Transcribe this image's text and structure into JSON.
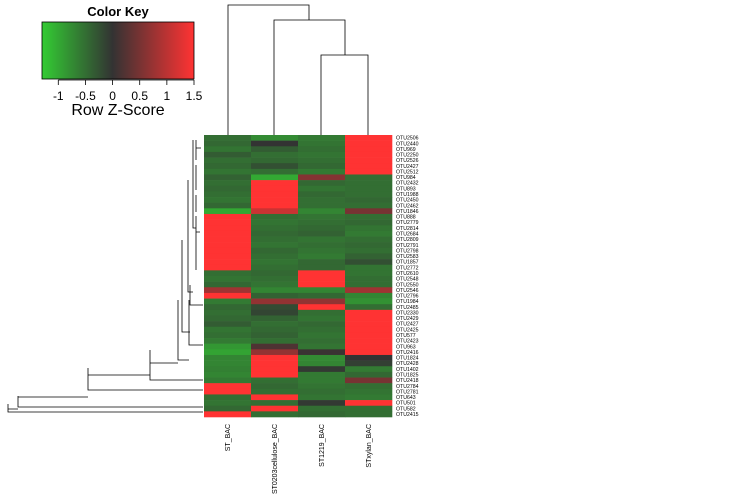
{
  "chart_data": {
    "type": "heatmap",
    "color_key": {
      "title": "Color Key",
      "xlabel": "Row Z-Score",
      "ticks": [
        "-1",
        "-0.5",
        "0",
        "0.5",
        "1",
        "1.5"
      ],
      "range": [
        -1.3,
        1.5
      ],
      "colors": [
        "#33cc33",
        "#333333",
        "#ff3333"
      ]
    },
    "columns": [
      "ST_BAC",
      "ST0203cellulose_BAC",
      "ST1219_BAC",
      "STxylan_BAC"
    ],
    "rows": [
      {
        "label": "OTU2506",
        "values": [
          -0.5,
          -0.75,
          -0.6,
          1.5
        ]
      },
      {
        "label": "OTU2440",
        "values": [
          -0.45,
          0.0,
          -0.55,
          1.5
        ]
      },
      {
        "label": "OTU969",
        "values": [
          -0.55,
          -0.35,
          -0.5,
          1.5
        ]
      },
      {
        "label": "OTU2250",
        "values": [
          -0.35,
          -0.5,
          -0.55,
          1.5
        ]
      },
      {
        "label": "OTU2526",
        "values": [
          -0.5,
          -0.45,
          -0.5,
          1.5
        ]
      },
      {
        "label": "OTU2427",
        "values": [
          -0.45,
          -0.25,
          -0.45,
          1.5
        ]
      },
      {
        "label": "OTU2512",
        "values": [
          -0.55,
          -0.5,
          -0.6,
          1.5
        ]
      },
      {
        "label": "OTU984",
        "values": [
          -0.4,
          -1.0,
          0.6,
          -0.5
        ]
      },
      {
        "label": "OTU2432",
        "values": [
          -0.5,
          1.5,
          -0.45,
          -0.5
        ]
      },
      {
        "label": "OTU893",
        "values": [
          -0.45,
          1.5,
          -0.55,
          -0.5
        ]
      },
      {
        "label": "OTU1988",
        "values": [
          -0.5,
          1.5,
          -0.45,
          -0.5
        ]
      },
      {
        "label": "OTU2450",
        "values": [
          -0.55,
          1.5,
          -0.5,
          -0.45
        ]
      },
      {
        "label": "OTU2462",
        "values": [
          -0.45,
          1.5,
          -0.5,
          -0.5
        ]
      },
      {
        "label": "OTU1846",
        "values": [
          -1.0,
          1.1,
          -0.7,
          0.5
        ]
      },
      {
        "label": "OTU888",
        "values": [
          1.5,
          -0.5,
          -0.55,
          -0.5
        ]
      },
      {
        "label": "OTU2779",
        "values": [
          1.5,
          -0.55,
          -0.5,
          -0.45
        ]
      },
      {
        "label": "OTU2814",
        "values": [
          1.5,
          -0.5,
          -0.45,
          -0.55
        ]
      },
      {
        "label": "OTU2684",
        "values": [
          1.5,
          -0.45,
          -0.4,
          -0.6
        ]
      },
      {
        "label": "OTU2809",
        "values": [
          1.5,
          -0.5,
          -0.55,
          -0.5
        ]
      },
      {
        "label": "OTU2791",
        "values": [
          1.5,
          -0.55,
          -0.5,
          -0.45
        ]
      },
      {
        "label": "OTU2798",
        "values": [
          1.5,
          -0.45,
          -0.55,
          -0.5
        ]
      },
      {
        "label": "OTU2583",
        "values": [
          1.5,
          -0.5,
          -0.6,
          -0.4
        ]
      },
      {
        "label": "OTU1857",
        "values": [
          1.5,
          -0.55,
          -0.45,
          -0.25
        ]
      },
      {
        "label": "OTU2772",
        "values": [
          1.5,
          -0.5,
          -0.45,
          -0.55
        ]
      },
      {
        "label": "OTU2610",
        "values": [
          -0.5,
          -0.45,
          1.5,
          -0.55
        ]
      },
      {
        "label": "OTU2548",
        "values": [
          -0.55,
          -0.5,
          1.5,
          -0.5
        ]
      },
      {
        "label": "OTU2550",
        "values": [
          -0.45,
          -0.55,
          1.5,
          -0.5
        ]
      },
      {
        "label": "OTU2546",
        "values": [
          0.8,
          -0.7,
          -0.7,
          0.8
        ]
      },
      {
        "label": "OTU2796",
        "values": [
          1.5,
          -0.4,
          -0.45,
          -0.7
        ]
      },
      {
        "label": "OTU1984",
        "values": [
          -0.6,
          0.7,
          0.7,
          -0.8
        ]
      },
      {
        "label": "OTU2485",
        "values": [
          -0.45,
          -0.2,
          1.5,
          -0.5
        ]
      },
      {
        "label": "OTU2330",
        "values": [
          -0.5,
          -0.15,
          -0.5,
          1.5
        ]
      },
      {
        "label": "OTU2429",
        "values": [
          -0.45,
          -0.4,
          -0.55,
          1.5
        ]
      },
      {
        "label": "OTU2427",
        "values": [
          -0.35,
          -0.5,
          -0.45,
          1.5
        ]
      },
      {
        "label": "OTU2425",
        "values": [
          -0.55,
          -0.45,
          -0.5,
          1.5
        ]
      },
      {
        "label": "OTU577",
        "values": [
          -0.5,
          -0.4,
          -0.55,
          1.5
        ]
      },
      {
        "label": "OTU2423",
        "values": [
          -0.6,
          -0.5,
          -0.5,
          1.5
        ]
      },
      {
        "label": "OTU963",
        "values": [
          -0.85,
          0.2,
          -0.55,
          1.5
        ]
      },
      {
        "label": "OTU2416",
        "values": [
          -0.95,
          0.7,
          0.05,
          1.5
        ]
      },
      {
        "label": "OTU1824",
        "values": [
          -0.7,
          1.5,
          -0.75,
          0.0
        ]
      },
      {
        "label": "OTU2428",
        "values": [
          -0.7,
          1.5,
          -0.7,
          -0.1
        ]
      },
      {
        "label": "OTU1402",
        "values": [
          -0.65,
          1.5,
          -0.05,
          -0.6
        ]
      },
      {
        "label": "OTU1825",
        "values": [
          -0.7,
          1.5,
          -0.6,
          -0.45
        ]
      },
      {
        "label": "OTU2418",
        "values": [
          -0.6,
          -0.5,
          -0.6,
          0.5
        ]
      },
      {
        "label": "OTU2784",
        "values": [
          1.5,
          -0.45,
          -0.55,
          -0.5
        ]
      },
      {
        "label": "OTU2781",
        "values": [
          1.5,
          -0.5,
          -0.5,
          -0.55
        ]
      },
      {
        "label": "OTU643",
        "values": [
          -0.5,
          1.5,
          -0.55,
          -0.6
        ]
      },
      {
        "label": "OTU501",
        "values": [
          -0.55,
          -0.5,
          -0.05,
          1.5
        ]
      },
      {
        "label": "OTU582",
        "values": [
          -0.45,
          1.5,
          -0.5,
          -0.5
        ]
      },
      {
        "label": "OTU2415",
        "values": [
          1.5,
          -0.5,
          -0.45,
          -0.5
        ]
      }
    ]
  }
}
